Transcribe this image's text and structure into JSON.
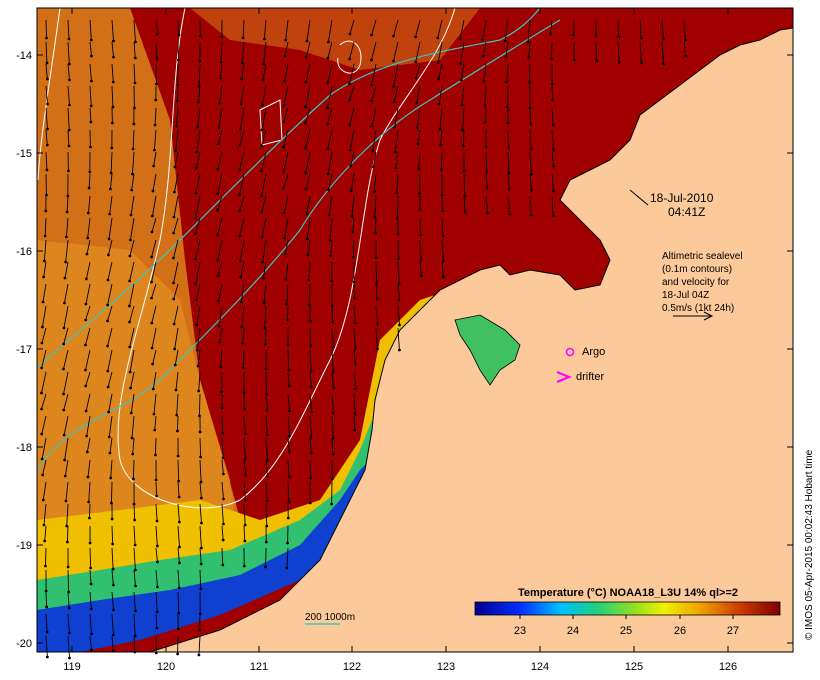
{
  "map": {
    "date_line1": "18-Jul-2010",
    "date_line2": "04:41Z",
    "sealevel_note": [
      "Altimetric sealevel",
      "(0.1m contours)",
      "and velocity for",
      "18-Jul 04Z"
    ],
    "velocity_scale_label": "0.5m/s (1kt 24h)",
    "argo_label": "Argo",
    "drifter_label": "drifter",
    "isobath_label": "200  1000m",
    "colorbar_title": "Temperature (°C) NOAA18_L3U 14% ql>=2",
    "colorbar_ticks": [
      "23",
      "24",
      "25",
      "26",
      "27"
    ],
    "x_ticks": [
      "119",
      "120",
      "121",
      "122",
      "123",
      "124",
      "125",
      "126"
    ],
    "y_ticks": [
      "-14",
      "-15",
      "-16",
      "-17",
      "-18",
      "-19",
      "-20"
    ],
    "credit": "© IMOS 05-Apr-2015 00:02:43 Hobart time",
    "colors": {
      "land": "#fbc99a",
      "warm": "#a00000",
      "mid": "#d06a10",
      "isobath": "#3fc3c3",
      "contour": "#ffffff",
      "argo": "#ff00ff"
    }
  }
}
